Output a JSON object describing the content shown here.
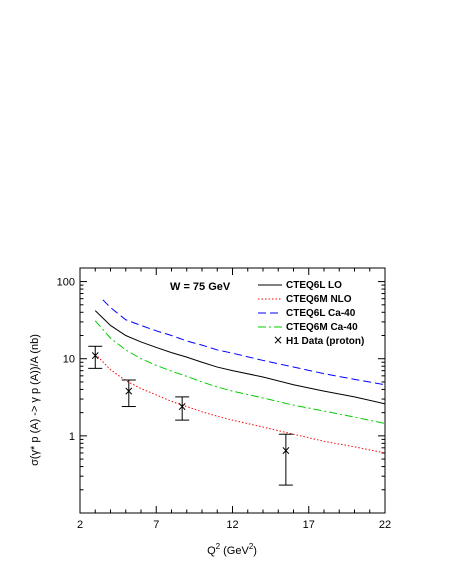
{
  "chart_data": {
    "type": "line",
    "xlabel_main": "Q",
    "xlabel_sup": "2",
    "xlabel_unit_pre": " (GeV",
    "xlabel_unit_sup": "2",
    "xlabel_unit_post": ")",
    "ylabel": "σ(γ* p (A) -> γ p (A))/A (nb)",
    "annotation": "W = 75 GeV",
    "xlim": [
      2,
      22
    ],
    "ylim": [
      0.1,
      150
    ],
    "y_scale": "log",
    "x_ticks": [
      2,
      7,
      12,
      17,
      22
    ],
    "y_ticks": [
      1,
      10,
      100
    ],
    "legend_position": "top-right",
    "series": [
      {
        "name": "CTEQ6L LO",
        "style": "solid",
        "color": "#000000",
        "x": [
          3,
          4,
          5,
          6,
          7,
          8,
          9,
          10,
          11,
          12,
          14,
          16,
          18,
          20,
          22
        ],
        "y": [
          42,
          27,
          20,
          16.5,
          14,
          12,
          10.5,
          9,
          7.8,
          7,
          5.8,
          4.6,
          3.8,
          3.2,
          2.6
        ]
      },
      {
        "name": "CTEQ6M NLO",
        "style": "dotted",
        "color": "#ff0000",
        "x": [
          3,
          4,
          5,
          6,
          7,
          8,
          9,
          10,
          11,
          12,
          14,
          16,
          18,
          20,
          22
        ],
        "y": [
          11.5,
          7.2,
          5.2,
          4.1,
          3.4,
          2.8,
          2.4,
          2.05,
          1.8,
          1.6,
          1.3,
          1.05,
          0.85,
          0.72,
          0.6
        ]
      },
      {
        "name": "CTEQ6L Ca-40",
        "style": "dashed",
        "color": "#0000ff",
        "x": [
          3.5,
          4,
          5,
          6,
          7,
          8,
          9,
          10,
          11,
          12,
          14,
          16,
          18,
          20,
          22
        ],
        "y": [
          58,
          46,
          32,
          27,
          23,
          20,
          17,
          15,
          13,
          11.8,
          9.5,
          7.8,
          6.4,
          5.4,
          4.6
        ]
      },
      {
        "name": "CTEQ6M Ca-40",
        "style": "dashdot",
        "color": "#00cc00",
        "x": [
          3,
          4,
          5,
          6,
          7,
          8,
          9,
          10,
          11,
          12,
          14,
          16,
          18,
          20,
          22
        ],
        "y": [
          31,
          18.5,
          13,
          10,
          8.2,
          6.9,
          5.9,
          5.0,
          4.3,
          3.8,
          3.1,
          2.5,
          2.1,
          1.75,
          1.45
        ]
      }
    ],
    "data_series": {
      "name": "H1 Data (proton)",
      "marker": "×",
      "points": [
        {
          "x": 3.0,
          "y": 11.0,
          "ylo": 7.5,
          "yhi": 14.5
        },
        {
          "x": 5.2,
          "y": 3.8,
          "ylo": 2.4,
          "yhi": 5.3
        },
        {
          "x": 8.7,
          "y": 2.4,
          "ylo": 1.6,
          "yhi": 3.2
        },
        {
          "x": 15.5,
          "y": 0.65,
          "ylo": 0.23,
          "yhi": 1.05
        }
      ]
    }
  }
}
